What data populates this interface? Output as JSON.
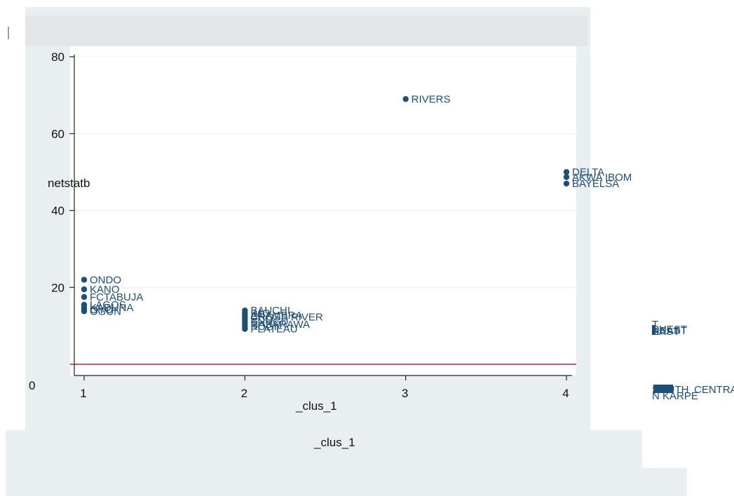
{
  "chart_data": {
    "type": "scatter",
    "title": "",
    "xlabel": "_clus_1",
    "ylabel": "netstatb",
    "xlabel_repeat": "_clus_1",
    "stray_zero_label": "0",
    "xlim": [
      1,
      4
    ],
    "ylim": [
      0,
      80
    ],
    "xticks": [
      "1",
      "2",
      "3",
      "4"
    ],
    "yticks": [
      "20",
      "40",
      "60",
      "80"
    ],
    "grid": true,
    "reference_line": {
      "y": 0,
      "color": "#d9546b"
    },
    "marker_color": "#1f4e79",
    "series": [
      {
        "points": [
          {
            "x": 1,
            "y": 22,
            "label": "ONDO"
          },
          {
            "x": 1,
            "y": 19.5,
            "label": "KANO"
          },
          {
            "x": 1,
            "y": 17.5,
            "label": "FCTABUJA"
          },
          {
            "x": 1,
            "y": 15.5,
            "label": "LAGOS"
          },
          {
            "x": 1,
            "y": 14.8,
            "label": "KADUNA"
          },
          {
            "x": 1,
            "y": 14.2,
            "label": "OYO"
          },
          {
            "x": 1,
            "y": 13.8,
            "label": "OGUN"
          },
          {
            "x": 2,
            "y": 14,
            "label": "BAUCHI"
          },
          {
            "x": 2,
            "y": 13.3,
            "label": "IMO"
          },
          {
            "x": 2,
            "y": 12.8,
            "label": "ANAMBRA"
          },
          {
            "x": 2,
            "y": 12.3,
            "label": "CROSS RIVER"
          },
          {
            "x": 2,
            "y": 11.7,
            "label": "EDO"
          },
          {
            "x": 2,
            "y": 11.1,
            "label": "ENUGU"
          },
          {
            "x": 2,
            "y": 10.4,
            "label": "NASARAWA"
          },
          {
            "x": 2,
            "y": 9.8,
            "label": "KOGI"
          },
          {
            "x": 2,
            "y": 9.2,
            "label": "PLATEAU"
          },
          {
            "x": 3,
            "y": 69,
            "label": "RIVERS"
          },
          {
            "x": 4,
            "y": 50,
            "label": "DELTA"
          },
          {
            "x": 4,
            "y": 48.7,
            "label": "AKWA IBOM"
          },
          {
            "x": 4,
            "y": 47,
            "label": "BAYELSA"
          }
        ]
      }
    ],
    "overflow_labels_group_a": [
      "T",
      "SHEST",
      "NEAST",
      "EAST"
    ],
    "overflow_labels_group_b": [
      "SOUTH",
      "CENTRAL",
      "N KARPE"
    ]
  }
}
